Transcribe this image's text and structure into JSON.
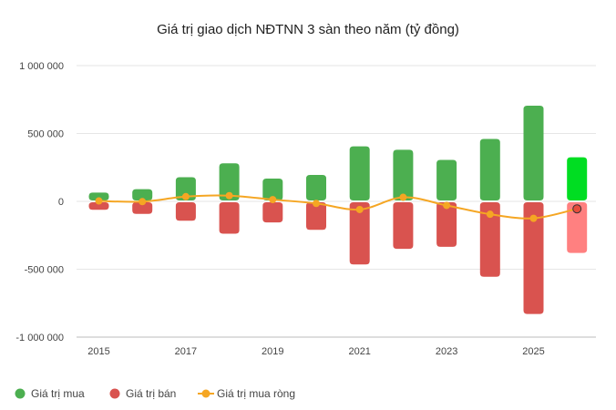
{
  "chart_data": {
    "type": "bar",
    "title": "Giá trị giao dịch NĐTNN 3 sàn theo năm (tỷ đồng)",
    "xlabel": "",
    "ylabel": "",
    "ylim": [
      -1000000,
      1000000
    ],
    "yticks": [
      1000000,
      500000,
      0,
      -500000,
      -1000000
    ],
    "ytick_labels": [
      "1 000 000",
      "500 000",
      "0",
      "-500 000",
      "-1 000 000"
    ],
    "x": [
      2015,
      2016,
      2017,
      2018,
      2019,
      2020,
      2021,
      2022,
      2023,
      2024,
      2025,
      2026
    ],
    "xtick_labels": [
      "2015",
      "2017",
      "2019",
      "2021",
      "2023",
      "2025"
    ],
    "xtick_values": [
      2015,
      2017,
      2019,
      2021,
      2023,
      2025
    ],
    "series": [
      {
        "name": "Giá trị mua",
        "kind": "bar",
        "color": "#4caf50",
        "values": [
          65000,
          90000,
          178000,
          280000,
          168000,
          195000,
          405000,
          380000,
          305000,
          460000,
          705000,
          325000
        ]
      },
      {
        "name": "Giá trị bán",
        "kind": "bar",
        "color": "#d9534f",
        "values": [
          -62000,
          -92000,
          -143000,
          -238000,
          -155000,
          -210000,
          -465000,
          -350000,
          -335000,
          -555000,
          -830000,
          -380000
        ]
      },
      {
        "name": "Giá trị mua ròng",
        "kind": "line",
        "color": "#f5a623",
        "values": [
          3000,
          -2000,
          35000,
          42000,
          13000,
          -15000,
          -60000,
          30000,
          -30000,
          -95000,
          -125000,
          -55000
        ]
      }
    ],
    "highlight_last": {
      "buy_color": "#00dd22",
      "sell_color": "#ff8080",
      "point_fill": "#e74c3c",
      "point_stroke": "#333333"
    },
    "grid": true,
    "legend_position": "bottom-left"
  }
}
